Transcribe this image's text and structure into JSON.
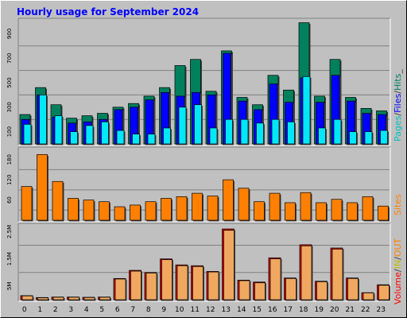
{
  "chart_data": [
    {
      "type": "bar",
      "title": "Hourly usage for September 2024",
      "categories": [
        "0",
        "1",
        "2",
        "3",
        "4",
        "5",
        "6",
        "7",
        "8",
        "9",
        "10",
        "11",
        "12",
        "13",
        "14",
        "15",
        "16",
        "17",
        "18",
        "19",
        "20",
        "21",
        "22",
        "23"
      ],
      "ylim": [
        0,
        1000
      ],
      "y_ticks": [
        "100",
        "300",
        "500",
        "700",
        "900"
      ],
      "series": [
        {
          "name": "Hits",
          "values": [
            240,
            460,
            320,
            210,
            230,
            250,
            300,
            330,
            390,
            460,
            640,
            690,
            430,
            760,
            380,
            320,
            560,
            440,
            990,
            390,
            690,
            380,
            290,
            270
          ]
        },
        {
          "name": "Files",
          "values": [
            200,
            400,
            220,
            170,
            180,
            200,
            280,
            300,
            360,
            420,
            390,
            420,
            400,
            740,
            350,
            280,
            490,
            340,
            540,
            340,
            560,
            350,
            250,
            240
          ]
        },
        {
          "name": "Pages",
          "values": [
            160,
            400,
            230,
            100,
            150,
            180,
            110,
            80,
            80,
            130,
            300,
            320,
            130,
            200,
            200,
            170,
            200,
            180,
            550,
            130,
            200,
            100,
            100,
            110
          ]
        }
      ],
      "legend": [
        "Pages",
        "/",
        "Files",
        "/",
        "Hits",
        "_"
      ],
      "legend_colors": [
        "#00c0c0",
        "#404040",
        "#0000ff",
        "#404040",
        "#00805c",
        "#404040"
      ]
    },
    {
      "type": "bar",
      "categories": [
        "0",
        "1",
        "2",
        "3",
        "4",
        "5",
        "6",
        "7",
        "8",
        "9",
        "10",
        "11",
        "12",
        "13",
        "14",
        "15",
        "16",
        "17",
        "18",
        "19",
        "20",
        "21",
        "22",
        "23"
      ],
      "ylim": [
        0,
        210
      ],
      "y_ticks": [
        "60",
        "120",
        "180"
      ],
      "series": [
        {
          "name": "Sites",
          "values": [
            100,
            195,
            115,
            65,
            60,
            55,
            40,
            45,
            55,
            65,
            70,
            80,
            72,
            120,
            95,
            55,
            80,
            52,
            82,
            52,
            62,
            52,
            70,
            42
          ]
        }
      ],
      "legend": [
        "Sites"
      ],
      "legend_colors": [
        "#ff8000"
      ]
    },
    {
      "type": "bar",
      "categories": [
        "0",
        "1",
        "2",
        "3",
        "4",
        "5",
        "6",
        "7",
        "8",
        "9",
        "10",
        "11",
        "12",
        "13",
        "14",
        "15",
        "16",
        "17",
        "18",
        "19",
        "20",
        "21",
        "22",
        "23"
      ],
      "ylim": [
        0,
        2.6
      ],
      "y_ticks": [
        "5M",
        "1.5M",
        "2.5M"
      ],
      "series": [
        {
          "name": "Volume",
          "values": [
            0.15,
            0.08,
            0.1,
            0.1,
            0.09,
            0.1,
            0.78,
            1.08,
            1.0,
            1.5,
            1.28,
            1.25,
            1.04,
            2.6,
            0.72,
            0.65,
            1.54,
            0.8,
            2.02,
            0.68,
            1.9,
            0.8,
            0.26,
            0.55
          ]
        },
        {
          "name": "OUT",
          "values": [
            0.14,
            0.07,
            0.09,
            0.09,
            0.08,
            0.09,
            0.76,
            1.05,
            0.98,
            1.47,
            1.25,
            1.22,
            1.02,
            2.55,
            0.7,
            0.62,
            1.5,
            0.78,
            1.98,
            0.66,
            1.86,
            0.78,
            0.25,
            0.53
          ]
        }
      ],
      "legend": [
        "Volume",
        "/",
        "IN",
        "/",
        "OUT"
      ],
      "legend_colors": [
        "#ff0000",
        "#404040",
        "#c0c000",
        "#404040",
        "#ff8000"
      ]
    }
  ],
  "legends": {
    "top": [
      "Pages",
      "/",
      "Files",
      "/",
      "Hits",
      "_"
    ],
    "mid": [
      "Sites"
    ],
    "bottom": [
      "Volume",
      "/",
      "IN",
      "/",
      "OUT"
    ]
  }
}
